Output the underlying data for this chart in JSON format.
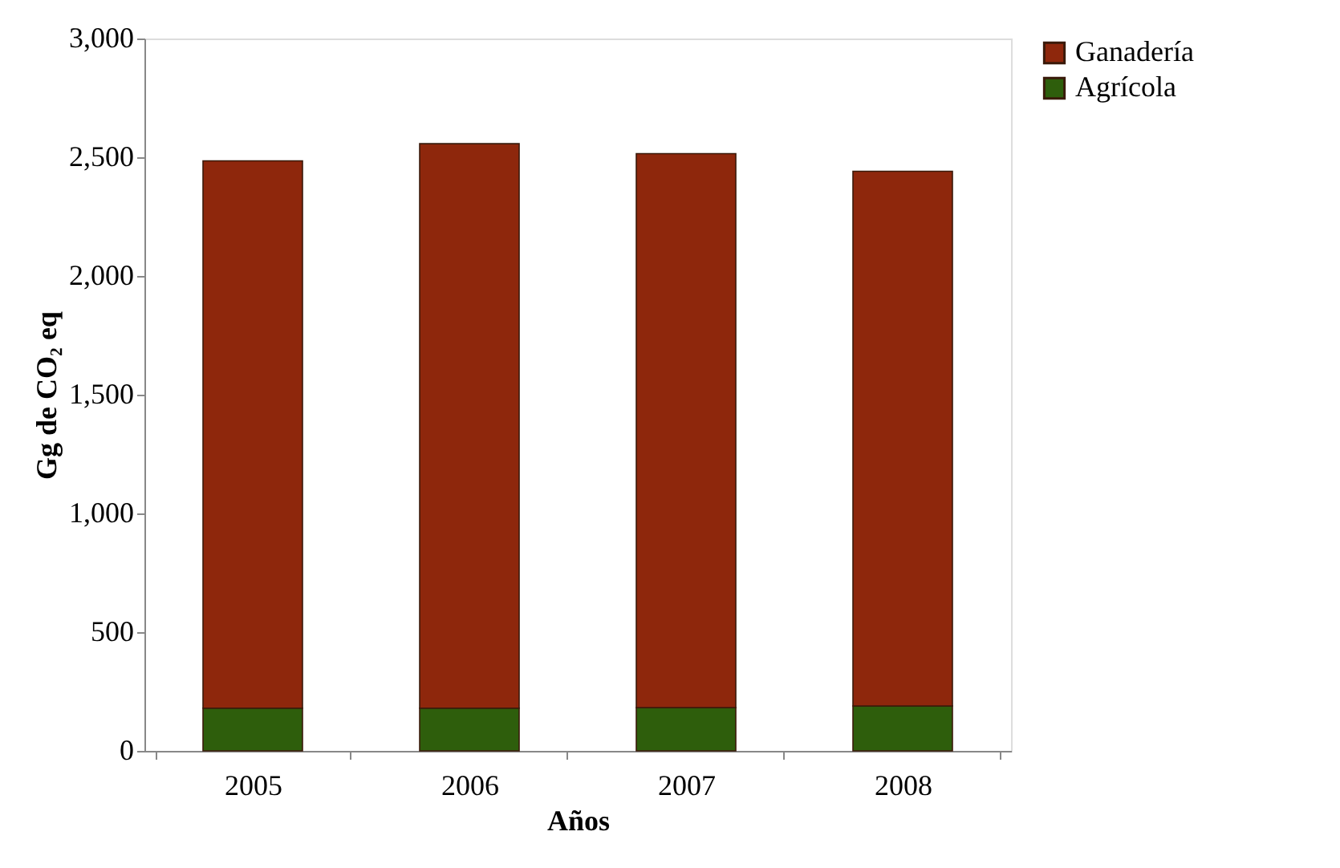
{
  "chart_data": {
    "type": "bar",
    "stacked": true,
    "xlabel": "Años",
    "ylabel": "Gg de CO₂ eq",
    "categories": [
      "2005",
      "2006",
      "2007",
      "2008"
    ],
    "series": [
      {
        "name": "Agrícola",
        "color": "#2e5e0c",
        "values": [
          180,
          180,
          182,
          189
        ]
      },
      {
        "name": "Ganadería",
        "color": "#8e270c",
        "values": [
          2305,
          2377,
          2333,
          2252
        ]
      }
    ],
    "ylim": [
      0,
      3000
    ],
    "yticks": [
      {
        "value": 0,
        "label": "0"
      },
      {
        "value": 500,
        "label": "500"
      },
      {
        "value": 1000,
        "label": "1,000"
      },
      {
        "value": 1500,
        "label": "1,500"
      },
      {
        "value": 2000,
        "label": "2,000"
      },
      {
        "value": 2500,
        "label": "2,500"
      },
      {
        "value": 3000,
        "label": "3,000"
      }
    ],
    "grid": false,
    "legend": "right"
  }
}
